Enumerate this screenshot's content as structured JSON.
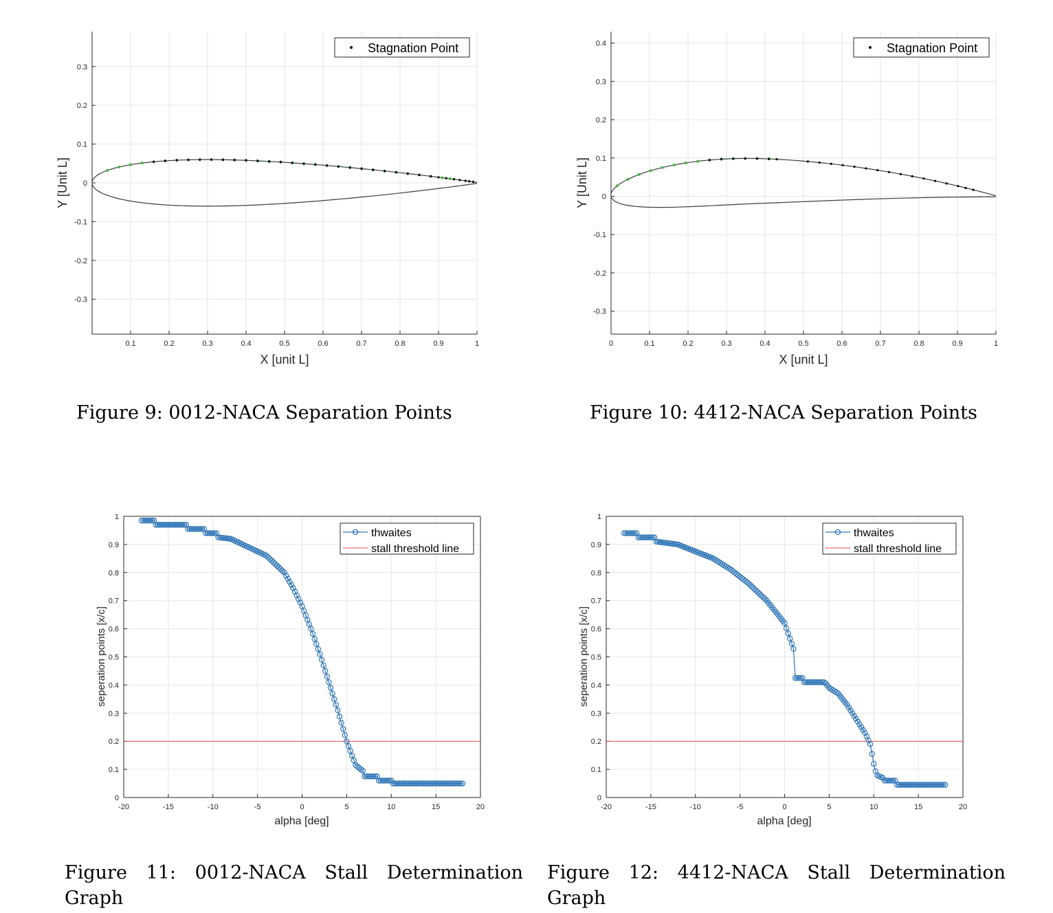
{
  "chart_data": [
    {
      "type": "line",
      "id": "fig9",
      "title": "",
      "xlabel": "X [unit L]",
      "ylabel": "Y [Unit L]",
      "xlim": [
        0,
        1
      ],
      "ylim": [
        -0.39,
        0.39
      ],
      "xticks": [
        0.1,
        0.2,
        0.3,
        0.4,
        0.5,
        0.6,
        0.7,
        0.8,
        0.9,
        1
      ],
      "xticklabels": [
        "0.1",
        "0.2",
        "0.3",
        "0.4",
        "0.5",
        "0.6",
        "0.7",
        "0.8",
        "0.9",
        "1"
      ],
      "yticks": [
        -0.3,
        -0.2,
        -0.1,
        0,
        0.1,
        0.2,
        0.3
      ],
      "yticklabels": [
        "-0.3",
        "-0.2",
        "-0.1",
        "0",
        "0.1",
        "0.2",
        "0.3"
      ],
      "grid": true,
      "legend": {
        "position": "top-right",
        "entries": [
          "Stagnation Point"
        ]
      },
      "airfoil": {
        "m": 0,
        "p": 0,
        "t": 0.12
      },
      "green_markers_x": [
        0.04,
        0.07,
        0.1,
        0.13,
        0.16,
        0.19,
        0.22,
        0.25,
        0.28,
        0.31,
        0.34,
        0.37,
        0.4,
        0.43,
        0.46,
        0.49,
        0.52,
        0.55,
        0.58,
        0.61,
        0.64,
        0.67,
        0.7,
        0.73,
        0.76,
        0.79,
        0.82,
        0.85,
        0.88,
        0.91,
        0.93
      ],
      "black_markers_x": [
        0.16,
        0.19,
        0.22,
        0.25,
        0.28,
        0.31,
        0.34,
        0.37,
        0.4,
        0.43,
        0.46,
        0.49,
        0.52,
        0.55,
        0.58,
        0.61,
        0.64,
        0.67,
        0.7,
        0.73,
        0.76,
        0.79,
        0.82,
        0.85,
        0.88,
        0.9,
        0.92,
        0.94,
        0.955,
        0.97,
        0.98,
        0.99
      ]
    },
    {
      "type": "line",
      "id": "fig10",
      "title": "",
      "xlabel": "X [unit L]",
      "ylabel": "Y [Unit L]",
      "xlim": [
        0,
        1
      ],
      "ylim": [
        -0.36,
        0.43
      ],
      "xticks": [
        0,
        0.1,
        0.2,
        0.3,
        0.4,
        0.5,
        0.6,
        0.7,
        0.8,
        0.9,
        1
      ],
      "xticklabels": [
        "0",
        "0.1",
        "0.2",
        "0.3",
        "0.4",
        "0.5",
        "0.6",
        "0.7",
        "0.8",
        "0.9",
        "1"
      ],
      "yticks": [
        -0.3,
        -0.2,
        -0.1,
        0,
        0.1,
        0.2,
        0.3,
        0.4
      ],
      "yticklabels": [
        "-0.3",
        "-0.2",
        "-0.1",
        "0",
        "0.1",
        "0.2",
        "0.3",
        "0.4"
      ],
      "grid": true,
      "legend": {
        "position": "top-right",
        "entries": [
          "Stagnation Point"
        ]
      },
      "airfoil": {
        "m": 0.04,
        "p": 0.4,
        "t": 0.12
      },
      "green_markers_x": [
        0.02,
        0.05,
        0.08,
        0.11,
        0.14,
        0.17,
        0.2,
        0.23,
        0.26,
        0.29,
        0.32,
        0.35,
        0.38,
        0.41
      ],
      "black_markers_x": [
        0.26,
        0.29,
        0.32,
        0.35,
        0.38,
        0.41,
        0.43,
        0.51,
        0.54,
        0.57,
        0.6,
        0.63,
        0.66,
        0.69,
        0.72,
        0.75,
        0.78,
        0.81,
        0.84,
        0.87,
        0.9,
        0.92,
        0.94
      ]
    },
    {
      "type": "line",
      "id": "fig11",
      "title": "",
      "xlabel": "alpha [deg]",
      "ylabel": "seperation points [x/c]",
      "xlim": [
        -20,
        20
      ],
      "ylim": [
        0,
        1
      ],
      "xticks": [
        -20,
        -15,
        -10,
        -5,
        0,
        5,
        10,
        15,
        20
      ],
      "xticklabels": [
        "-20",
        "-15",
        "-10",
        "-5",
        "0",
        "5",
        "10",
        "15",
        "20"
      ],
      "yticks": [
        0,
        0.1,
        0.2,
        0.3,
        0.4,
        0.5,
        0.6,
        0.7,
        0.8,
        0.9,
        1
      ],
      "yticklabels": [
        "0",
        "0.1",
        "0.2",
        "0.3",
        "0.4",
        "0.5",
        "0.6",
        "0.7",
        "0.8",
        "0.9",
        "1"
      ],
      "grid": true,
      "legend": {
        "position": "top-right",
        "entries": [
          "thwaites",
          "stall threshold line"
        ]
      },
      "series": [
        {
          "name": "thwaites",
          "color": "#2e75b6",
          "marker": "circle",
          "x_range": [
            -18,
            18
          ],
          "x_step": 0.2,
          "knots": [
            [
              -18,
              0.985
            ],
            [
              -16.5,
              0.985
            ],
            [
              -16.4,
              0.97
            ],
            [
              -13,
              0.97
            ],
            [
              -12.9,
              0.955
            ],
            [
              -11,
              0.955
            ],
            [
              -10.9,
              0.94
            ],
            [
              -9.5,
              0.94
            ],
            [
              -9.4,
              0.925
            ],
            [
              -8,
              0.92
            ],
            [
              -6,
              0.89
            ],
            [
              -4,
              0.86
            ],
            [
              -2,
              0.8
            ],
            [
              -1,
              0.745
            ],
            [
              0,
              0.68
            ],
            [
              1,
              0.6
            ],
            [
              2,
              0.51
            ],
            [
              3,
              0.41
            ],
            [
              4,
              0.31
            ],
            [
              5,
              0.2
            ],
            [
              6,
              0.115
            ],
            [
              6.8,
              0.095
            ],
            [
              7,
              0.075
            ],
            [
              8.5,
              0.075
            ],
            [
              8.6,
              0.06
            ],
            [
              10,
              0.06
            ],
            [
              10.1,
              0.05
            ],
            [
              18,
              0.05
            ]
          ]
        },
        {
          "name": "stall threshold line",
          "color": "#e8474c",
          "y": 0.2
        }
      ]
    },
    {
      "type": "line",
      "id": "fig12",
      "title": "",
      "xlabel": "alpha [deg]",
      "ylabel": "seperation points [x/c]",
      "xlim": [
        -20,
        20
      ],
      "ylim": [
        0,
        1
      ],
      "xticks": [
        -20,
        -15,
        -10,
        -5,
        0,
        5,
        10,
        15,
        20
      ],
      "xticklabels": [
        "-20",
        "-15",
        "-10",
        "-5",
        "0",
        "5",
        "10",
        "15",
        "20"
      ],
      "yticks": [
        0,
        0.1,
        0.2,
        0.3,
        0.4,
        0.5,
        0.6,
        0.7,
        0.8,
        0.9,
        1
      ],
      "yticklabels": [
        "0",
        "0.1",
        "0.2",
        "0.3",
        "0.4",
        "0.5",
        "0.6",
        "0.7",
        "0.8",
        "0.9",
        "1"
      ],
      "grid": true,
      "legend": {
        "position": "top-right",
        "entries": [
          "thwaites",
          "stall threshold line"
        ]
      },
      "series": [
        {
          "name": "thwaites",
          "color": "#2e75b6",
          "marker": "circle",
          "x_range": [
            -18,
            18
          ],
          "x_step": 0.2,
          "knots": [
            [
              -18,
              0.94
            ],
            [
              -16.5,
              0.94
            ],
            [
              -16.4,
              0.925
            ],
            [
              -14.5,
              0.925
            ],
            [
              -14.4,
              0.91
            ],
            [
              -12,
              0.9
            ],
            [
              -10,
              0.875
            ],
            [
              -8,
              0.85
            ],
            [
              -6,
              0.81
            ],
            [
              -4,
              0.76
            ],
            [
              -2,
              0.7
            ],
            [
              0,
              0.62
            ],
            [
              1.1,
              0.52
            ],
            [
              1.2,
              0.425
            ],
            [
              2,
              0.425
            ],
            [
              2.1,
              0.41
            ],
            [
              4.5,
              0.41
            ],
            [
              5,
              0.39
            ],
            [
              6,
              0.37
            ],
            [
              7,
              0.33
            ],
            [
              8,
              0.28
            ],
            [
              9,
              0.23
            ],
            [
              9.6,
              0.19
            ],
            [
              10,
              0.12
            ],
            [
              10.3,
              0.08
            ],
            [
              11,
              0.07
            ],
            [
              11.2,
              0.06
            ],
            [
              12.5,
              0.06
            ],
            [
              12.6,
              0.045
            ],
            [
              18,
              0.045
            ]
          ]
        },
        {
          "name": "stall threshold line",
          "color": "#e8474c",
          "y": 0.2
        }
      ]
    }
  ],
  "captions": {
    "fig9": "Figure 9: 0012-NACA Separation Points",
    "fig10": "Figure 10: 4412-NACA Separation Points",
    "fig11": "Figure 11: 0012-NACA Stall Determination Graph",
    "fig12": "Figure 12: 4412-NACA Stall Determination Graph"
  },
  "colors": {
    "axis": "#262626",
    "grid": "#e6e6e6",
    "outline": "#3a3a3a",
    "green": "#46b446",
    "blue": "#2e75b6",
    "red": "#e8474c"
  }
}
